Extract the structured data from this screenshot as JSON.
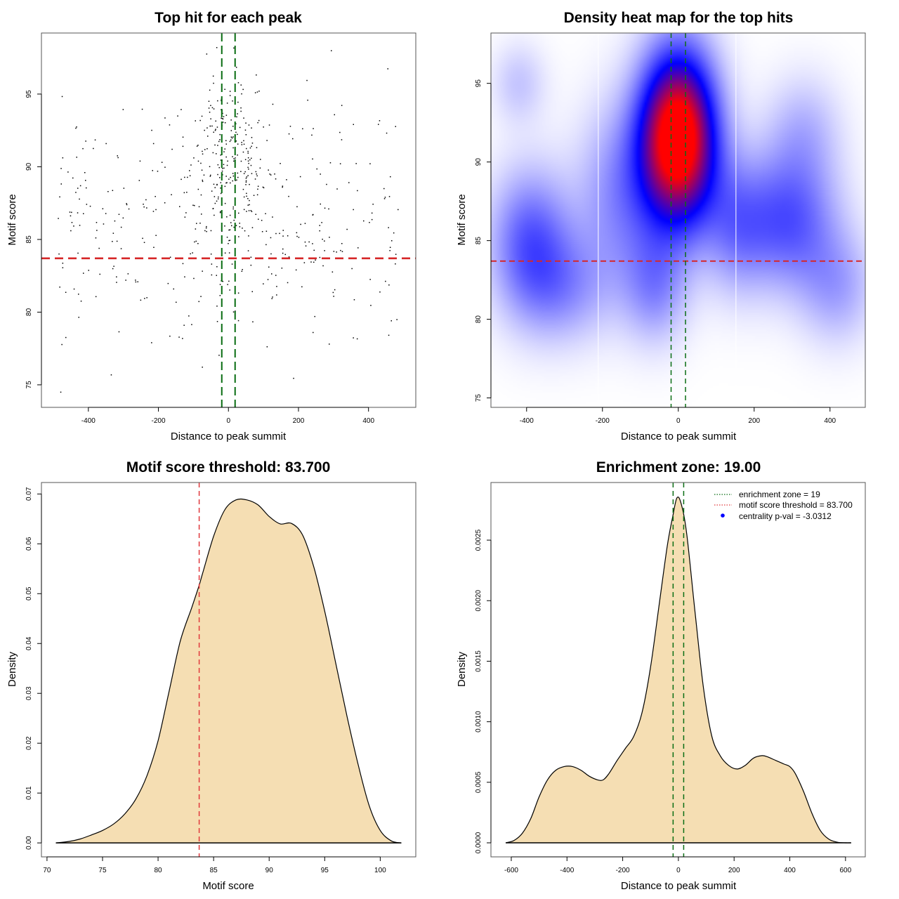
{
  "chart_data": [
    {
      "id": "scatter",
      "type": "scatter",
      "title": "Top hit for each peak",
      "xlabel": "Distance to peak summit",
      "ylabel": "Motif score",
      "xlim": [
        -534,
        535
      ],
      "ylim": [
        73.45,
        99.2
      ],
      "xticks": [
        -400,
        -200,
        0,
        200,
        400
      ],
      "yticks": [
        75,
        80,
        85,
        90,
        95
      ],
      "grid": false,
      "hlines": [
        {
          "y": 83.7,
          "color": "#d62728",
          "style": "dashed",
          "label": "motif score threshold"
        }
      ],
      "vlines": [
        {
          "x": -19,
          "color": "#0b6e14",
          "style": "dashed"
        },
        {
          "x": 19,
          "color": "#0b6e14",
          "style": "dashed"
        }
      ],
      "point_count_approx": 600,
      "point_color": "#000000",
      "point_distribution": {
        "x_center": 0,
        "x_spread_core": 80,
        "x_range": [
          -490,
          495
        ],
        "y_range": [
          74.5,
          98.2
        ],
        "y_mode": 90
      }
    },
    {
      "id": "heatmap",
      "type": "heatmap",
      "title": "Density heat map for the top hits",
      "xlabel": "Distance to peak summit",
      "ylabel": "Motif score",
      "xlim": [
        -494,
        493
      ],
      "ylim": [
        74.4,
        98.2
      ],
      "xticks": [
        -400,
        -200,
        0,
        200,
        400
      ],
      "yticks": [
        75,
        80,
        85,
        90,
        95
      ],
      "colormap": [
        "#ffffff",
        "#0000ff",
        "#ff0000"
      ],
      "hotspots": [
        {
          "x": 0,
          "y": 91.5,
          "level": 1.0,
          "sx": 70,
          "sy": 3.8
        },
        {
          "x": -390,
          "y": 85,
          "level": 0.28,
          "sx": 75,
          "sy": 3.2
        },
        {
          "x": 290,
          "y": 86.3,
          "level": 0.3,
          "sx": 90,
          "sy": 3.0
        },
        {
          "x": -150,
          "y": 88,
          "level": 0.2,
          "sx": 80,
          "sy": 4
        },
        {
          "x": 330,
          "y": 92,
          "level": 0.12,
          "sx": 70,
          "sy": 2.5
        },
        {
          "x": -420,
          "y": 95,
          "level": 0.1,
          "sx": 50,
          "sy": 1.8
        },
        {
          "x": 150,
          "y": 86,
          "level": 0.18,
          "sx": 60,
          "sy": 3
        },
        {
          "x": -300,
          "y": 82,
          "level": 0.16,
          "sx": 90,
          "sy": 2.5
        },
        {
          "x": 420,
          "y": 82,
          "level": 0.15,
          "sx": 70,
          "sy": 2.5
        },
        {
          "x": -60,
          "y": 82,
          "level": 0.18,
          "sx": 60,
          "sy": 2.5
        }
      ],
      "white_vlines": [
        -211,
        152
      ],
      "hlines": [
        {
          "y": 83.7,
          "color": "#d62728",
          "style": "dashed"
        }
      ],
      "vlines": [
        {
          "x": -19,
          "color": "#0b6e14",
          "style": "dashed"
        },
        {
          "x": 19,
          "color": "#0b6e14",
          "style": "dashed"
        }
      ]
    },
    {
      "id": "score-density",
      "type": "area",
      "title": "Motif score threshold: 83.700",
      "xlabel": "Motif score",
      "ylabel": "Density",
      "xlim": [
        69.5,
        103.2
      ],
      "ylim": [
        -0.0028,
        0.0723
      ],
      "xticks": [
        70,
        75,
        80,
        85,
        90,
        95,
        100
      ],
      "yticks": [
        0.0,
        0.01,
        0.02,
        0.03,
        0.04,
        0.05,
        0.06,
        0.07
      ],
      "ytick_labels": [
        "0.00",
        "0.01",
        "0.02",
        "0.03",
        "0.04",
        "0.05",
        "0.06",
        "0.07"
      ],
      "fill": "#f5deb3",
      "x": [
        70.8,
        72,
        73,
        74,
        75,
        76,
        77,
        78,
        79,
        80,
        81,
        82,
        83,
        83.7,
        84,
        85,
        86,
        87,
        88,
        89,
        90,
        91,
        92,
        93,
        94,
        95,
        96,
        97,
        98,
        99,
        100,
        101,
        101.9
      ],
      "y": [
        0.0,
        0.0003,
        0.0008,
        0.0016,
        0.0025,
        0.0038,
        0.0058,
        0.0088,
        0.0135,
        0.0205,
        0.0305,
        0.0405,
        0.047,
        0.0517,
        0.054,
        0.0615,
        0.0668,
        0.0688,
        0.0688,
        0.0678,
        0.0655,
        0.064,
        0.0641,
        0.0618,
        0.0555,
        0.0465,
        0.036,
        0.0255,
        0.0158,
        0.0075,
        0.0025,
        0.0004,
        0.0
      ],
      "vlines": [
        {
          "x": 83.7,
          "color": "#e0383c",
          "style": "dashed"
        }
      ]
    },
    {
      "id": "distance-density",
      "type": "area",
      "title": "Enrichment zone: 19.00",
      "xlabel": "Distance to peak summit",
      "ylabel": "Density",
      "xlim": [
        -673,
        671
      ],
      "ylim": [
        -0.000116,
        0.002976
      ],
      "xticks": [
        -600,
        -400,
        -200,
        0,
        200,
        400,
        600
      ],
      "yticks": [
        0.0,
        0.0005,
        0.001,
        0.0015,
        0.002,
        0.0025
      ],
      "ytick_labels": [
        "0.0000",
        "0.0005",
        "0.0010",
        "0.0015",
        "0.0020",
        "0.0025"
      ],
      "fill": "#f5deb3",
      "x": [
        -620,
        -590,
        -560,
        -530,
        -500,
        -470,
        -440,
        -410,
        -380,
        -350,
        -320,
        -290,
        -270,
        -250,
        -220,
        -190,
        -160,
        -130,
        -100,
        -70,
        -40,
        -20,
        -5,
        10,
        30,
        60,
        90,
        120,
        150,
        180,
        210,
        240,
        270,
        300,
        320,
        350,
        380,
        400,
        420,
        450,
        480,
        510,
        540,
        570,
        600,
        620
      ],
      "y": [
        0.0,
        2e-05,
        8e-05,
        0.0002,
        0.00038,
        0.00052,
        0.0006,
        0.00063,
        0.00063,
        0.0006,
        0.00055,
        0.00052,
        0.00052,
        0.00057,
        0.00068,
        0.00078,
        0.00088,
        0.00108,
        0.00145,
        0.00195,
        0.00245,
        0.0027,
        0.00285,
        0.0028,
        0.00255,
        0.0019,
        0.00128,
        0.00088,
        0.00072,
        0.00064,
        0.00061,
        0.00064,
        0.0007,
        0.00072,
        0.00071,
        0.00068,
        0.00065,
        0.00063,
        0.00057,
        0.00042,
        0.00024,
        0.0001,
        3e-05,
        5e-06,
        0.0,
        0.0
      ],
      "vlines": [
        {
          "x": -19,
          "color": "#0b6e14",
          "style": "dashed"
        },
        {
          "x": 19,
          "color": "#0b6e14",
          "style": "dashed"
        }
      ],
      "legend": {
        "placement": "top-right",
        "entries": [
          {
            "label": "enrichment zone = 19",
            "color": "#0b6e14",
            "kind": "dotted-line"
          },
          {
            "label": "motif score threshold = 83.700",
            "color": "#e0383c",
            "kind": "dotted-line"
          },
          {
            "label": "centrality p-val = -3.0312",
            "color": "#0000ff",
            "kind": "point"
          }
        ]
      }
    }
  ]
}
